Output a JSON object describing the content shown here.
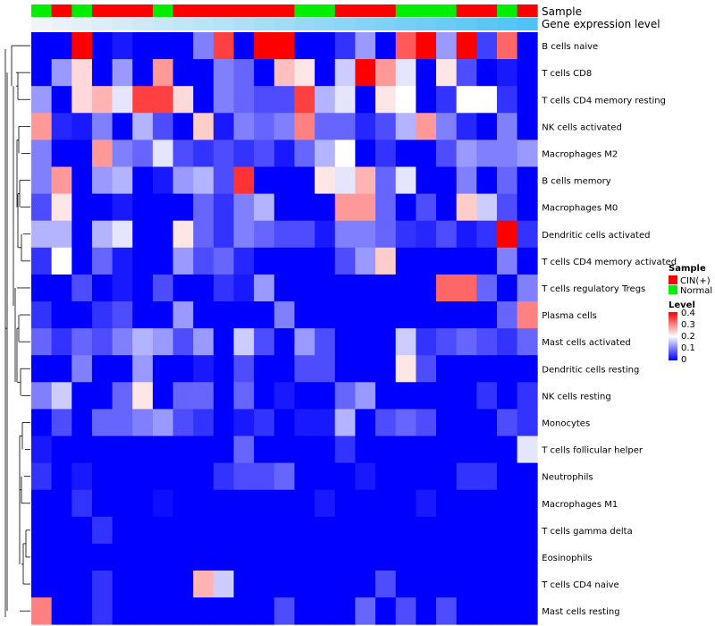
{
  "chart_data": {
    "type": "heatmap",
    "title": "",
    "annotation_rows": [
      {
        "label": "Sample",
        "values": [
          "Normal",
          "CIN(+)",
          "Normal",
          "CIN(+)",
          "CIN(+)",
          "CIN(+)",
          "Normal",
          "CIN(+)",
          "CIN(+)",
          "CIN(+)",
          "CIN(+)",
          "CIN(+)",
          "CIN(+)",
          "Normal",
          "Normal",
          "CIN(+)",
          "CIN(+)",
          "CIN(+)",
          "Normal",
          "Normal",
          "Normal",
          "CIN(+)",
          "CIN(+)",
          "Normal",
          "CIN(+)"
        ]
      },
      {
        "label": "Gene expression level",
        "values": [
          0.0,
          0.02,
          0.04,
          0.06,
          0.08,
          0.1,
          0.12,
          0.14,
          0.16,
          0.18,
          0.2,
          0.22,
          0.24,
          0.26,
          0.28,
          0.3,
          0.32,
          0.34,
          0.36,
          0.38,
          0.4,
          0.42,
          0.44,
          0.46,
          0.48
        ]
      }
    ],
    "rows": [
      "B cells naive",
      "T cells CD8",
      "T cells CD4 memory resting",
      "NK cells activated",
      "Macrophages M2",
      "B cells memory",
      "Macrophages M0",
      "Dendritic cells activated",
      "T cells CD4 memory activated",
      "T cells regulatory  Tregs",
      "Plasma cells",
      "Mast cells activated",
      "Dendritic cells resting",
      "NK cells resting",
      "Monocytes",
      "T cells follicular helper",
      "Neutrophils",
      "Macrophages M1",
      "T cells gamma delta",
      "Eosinophils",
      "T cells CD4 naive",
      "Mast cells resting"
    ],
    "n_columns": 25,
    "values": [
      [
        0.0,
        0.0,
        0.4,
        0.0,
        0.02,
        0.0,
        0.0,
        0.0,
        0.1,
        0.35,
        0.0,
        0.4,
        0.4,
        0.0,
        0.0,
        0.04,
        0.12,
        0.0,
        0.33,
        0.4,
        0.12,
        0.4,
        0.05,
        0.32,
        0.0
      ],
      [
        0.0,
        0.12,
        0.23,
        0.0,
        0.12,
        0.0,
        0.28,
        0.0,
        0.0,
        0.1,
        0.08,
        0.0,
        0.25,
        0.22,
        0.0,
        0.16,
        0.4,
        0.28,
        0.18,
        0.0,
        0.22,
        0.06,
        0.0,
        0.02,
        0.0
      ],
      [
        0.12,
        0.0,
        0.23,
        0.26,
        0.18,
        0.35,
        0.35,
        0.23,
        0.0,
        0.1,
        0.08,
        0.06,
        0.06,
        0.35,
        0.14,
        0.18,
        0.0,
        0.22,
        0.2,
        0.0,
        0.04,
        0.2,
        0.2,
        0.04,
        0.0
      ],
      [
        0.28,
        0.03,
        0.02,
        0.1,
        0.0,
        0.14,
        0.06,
        0.0,
        0.24,
        0.02,
        0.1,
        0.08,
        0.1,
        0.3,
        0.08,
        0.08,
        0.03,
        0.06,
        0.14,
        0.28,
        0.1,
        0.03,
        0.0,
        0.1,
        0.0
      ],
      [
        0.1,
        0.0,
        0.0,
        0.28,
        0.1,
        0.08,
        0.18,
        0.06,
        0.04,
        0.06,
        0.04,
        0.06,
        0.02,
        0.08,
        0.14,
        0.2,
        0.0,
        0.04,
        0.0,
        0.0,
        0.06,
        0.12,
        0.1,
        0.1,
        0.12
      ],
      [
        0.1,
        0.28,
        0.0,
        0.12,
        0.14,
        0.0,
        0.02,
        0.12,
        0.14,
        0.06,
        0.36,
        0.0,
        0.0,
        0.0,
        0.22,
        0.18,
        0.26,
        0.08,
        0.18,
        0.0,
        0.0,
        0.1,
        0.0,
        0.08,
        0.0
      ],
      [
        0.06,
        0.22,
        0.0,
        0.0,
        0.02,
        0.0,
        0.0,
        0.0,
        0.08,
        0.04,
        0.1,
        0.14,
        0.0,
        0.0,
        0.0,
        0.28,
        0.28,
        0.08,
        0.0,
        0.06,
        0.0,
        0.24,
        0.16,
        0.06,
        0.0
      ],
      [
        0.14,
        0.14,
        0.0,
        0.14,
        0.18,
        0.0,
        0.0,
        0.22,
        0.08,
        0.04,
        0.1,
        0.08,
        0.06,
        0.06,
        0.02,
        0.1,
        0.1,
        0.08,
        0.04,
        0.03,
        0.06,
        0.02,
        0.04,
        0.4,
        0.04
      ],
      [
        0.04,
        0.2,
        0.0,
        0.08,
        0.02,
        0.0,
        0.0,
        0.12,
        0.06,
        0.08,
        0.03,
        0.0,
        0.0,
        0.0,
        0.0,
        0.06,
        0.12,
        0.24,
        0.0,
        0.0,
        0.0,
        0.0,
        0.0,
        0.1,
        0.0
      ],
      [
        0.0,
        0.0,
        0.06,
        0.0,
        0.02,
        0.0,
        0.06,
        0.0,
        0.0,
        0.04,
        0.02,
        0.12,
        0.0,
        0.0,
        0.0,
        0.0,
        0.0,
        0.0,
        0.0,
        0.0,
        0.32,
        0.32,
        0.08,
        0.0,
        0.1
      ],
      [
        0.04,
        0.0,
        0.0,
        0.04,
        0.06,
        0.0,
        0.0,
        0.12,
        0.0,
        0.0,
        0.0,
        0.0,
        0.1,
        0.0,
        0.0,
        0.0,
        0.0,
        0.0,
        0.0,
        0.0,
        0.0,
        0.0,
        0.0,
        0.08,
        0.3
      ],
      [
        0.08,
        0.04,
        0.08,
        0.06,
        0.1,
        0.14,
        0.12,
        0.06,
        0.12,
        0.0,
        0.16,
        0.06,
        0.0,
        0.12,
        0.06,
        0.0,
        0.0,
        0.0,
        0.16,
        0.04,
        0.06,
        0.08,
        0.06,
        0.04,
        0.08
      ],
      [
        0.0,
        0.0,
        0.1,
        0.0,
        0.0,
        0.12,
        0.0,
        0.0,
        0.02,
        0.0,
        0.06,
        0.0,
        0.0,
        0.06,
        0.06,
        0.0,
        0.0,
        0.0,
        0.22,
        0.06,
        0.0,
        0.0,
        0.0,
        0.0,
        0.0
      ],
      [
        0.1,
        0.16,
        0.0,
        0.0,
        0.08,
        0.22,
        0.0,
        0.08,
        0.08,
        0.0,
        0.08,
        0.0,
        0.02,
        0.0,
        0.0,
        0.08,
        0.12,
        0.0,
        0.0,
        0.0,
        0.0,
        0.0,
        0.04,
        0.0,
        0.04
      ],
      [
        0.0,
        0.06,
        0.0,
        0.08,
        0.08,
        0.1,
        0.12,
        0.06,
        0.04,
        0.0,
        0.02,
        0.04,
        0.0,
        0.02,
        0.02,
        0.14,
        0.0,
        0.06,
        0.08,
        0.06,
        0.0,
        0.0,
        0.0,
        0.06,
        0.04
      ],
      [
        0.02,
        0.0,
        0.0,
        0.0,
        0.0,
        0.0,
        0.0,
        0.0,
        0.0,
        0.0,
        0.08,
        0.0,
        0.0,
        0.0,
        0.0,
        0.04,
        0.0,
        0.0,
        0.0,
        0.0,
        0.0,
        0.0,
        0.0,
        0.0,
        0.18
      ],
      [
        0.04,
        0.0,
        0.02,
        0.0,
        0.0,
        0.0,
        0.0,
        0.0,
        0.0,
        0.04,
        0.06,
        0.06,
        0.08,
        0.0,
        0.0,
        0.0,
        0.02,
        0.0,
        0.0,
        0.0,
        0.0,
        0.04,
        0.04,
        0.0,
        0.0
      ],
      [
        0.0,
        0.0,
        0.04,
        0.0,
        0.0,
        0.0,
        0.01,
        0.0,
        0.0,
        0.0,
        0.0,
        0.0,
        0.0,
        0.0,
        0.02,
        0.0,
        0.0,
        0.0,
        0.0,
        0.02,
        0.0,
        0.0,
        0.0,
        0.0,
        0.0
      ],
      [
        0.0,
        0.0,
        0.0,
        0.04,
        0.0,
        0.0,
        0.0,
        0.0,
        0.0,
        0.0,
        0.0,
        0.0,
        0.0,
        0.0,
        0.0,
        0.0,
        0.0,
        0.0,
        0.0,
        0.0,
        0.0,
        0.0,
        0.0,
        0.0,
        0.0
      ],
      [
        0.0,
        0.0,
        0.0,
        0.0,
        0.0,
        0.0,
        0.0,
        0.0,
        0.0,
        0.0,
        0.0,
        0.0,
        0.0,
        0.0,
        0.0,
        0.0,
        0.0,
        0.0,
        0.0,
        0.0,
        0.0,
        0.0,
        0.0,
        0.0,
        0.0
      ],
      [
        0.0,
        0.0,
        0.0,
        0.04,
        0.0,
        0.0,
        0.0,
        0.0,
        0.26,
        0.16,
        0.0,
        0.0,
        0.0,
        0.0,
        0.0,
        0.0,
        0.0,
        0.06,
        0.0,
        0.0,
        0.0,
        0.0,
        0.0,
        0.0,
        0.0
      ],
      [
        0.3,
        0.0,
        0.0,
        0.04,
        0.0,
        0.0,
        0.0,
        0.0,
        0.0,
        0.0,
        0.0,
        0.0,
        0.06,
        0.0,
        0.0,
        0.0,
        0.08,
        0.0,
        0.06,
        0.0,
        0.06,
        0.0,
        0.0,
        0.0,
        0.0
      ]
    ],
    "color_scale": {
      "min": 0,
      "mid": 0.2,
      "max": 0.4,
      "low": "#0000ff",
      "midColor": "#ffffff",
      "high": "#ff0000"
    },
    "legend": {
      "sample": {
        "title": "Sample",
        "entries": [
          {
            "label": "CIN(+)",
            "color": "#ff0000"
          },
          {
            "label": "Normal",
            "color": "#00ee00"
          }
        ]
      },
      "level": {
        "title": "Level",
        "ticks": [
          "0.4",
          "0.3",
          "0.2",
          "0.1",
          "0"
        ]
      }
    },
    "expression_bar_colors": {
      "low": "#f0f4f8",
      "high": "#4fc3f7"
    }
  }
}
